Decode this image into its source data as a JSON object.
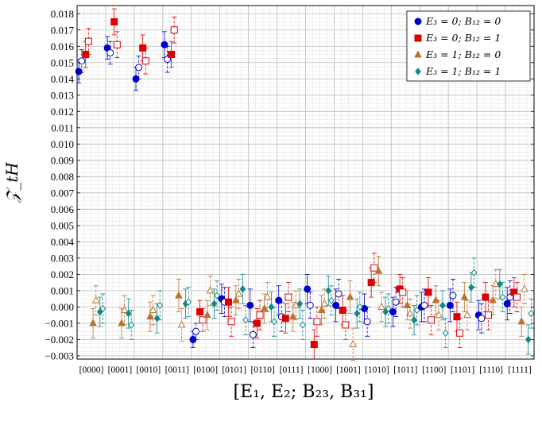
{
  "chart_data": {
    "type": "scatter",
    "title": "",
    "xlabel": "[E₁, E₂; B₂₃, B₃₁]",
    "ylabel": "𝒵_tH",
    "ylim": [
      -0.0032,
      0.0185
    ],
    "grid": true,
    "legend_position": "top-right",
    "categories": [
      "[0000]",
      "[0001]",
      "[0010]",
      "[0011]",
      "[0100]",
      "[0101]",
      "[0110]",
      "[0111]",
      "[1000]",
      "[1001]",
      "[1010]",
      "[1011]",
      "[1100]",
      "[1101]",
      "[1110]",
      "[1111]"
    ],
    "yticks": [
      "−0.003",
      "−0.002",
      "−0.001",
      "0.000",
      "0.001",
      "0.002",
      "0.003",
      "0.004",
      "0.005",
      "0.006",
      "0.007",
      "0.008",
      "0.009",
      "0.010",
      "0.011",
      "0.012",
      "0.013",
      "0.014",
      "0.015",
      "0.016",
      "0.017",
      "0.018"
    ],
    "ytick_values": [
      -0.003,
      -0.002,
      -0.001,
      0,
      0.001,
      0.002,
      0.003,
      0.004,
      0.005,
      0.006,
      0.007,
      0.008,
      0.009,
      0.01,
      0.011,
      0.012,
      0.013,
      0.014,
      0.015,
      0.016,
      0.017,
      0.018
    ],
    "series": [
      {
        "name": "E₃ = 0; B₁₂ = 0",
        "color": "#0000cc",
        "marker": "circle",
        "filled": [
          0.01445,
          0.0159,
          0.014,
          0.0161,
          -0.002,
          0.0005,
          0.0001,
          0.0004,
          0.0011,
          0.0001,
          -0.0001,
          -0.0003,
          0.0,
          0.0001,
          -0.0005,
          0.0002
        ],
        "filled_err": [
          0.0007,
          0.0007,
          0.0007,
          0.0008,
          0.0005,
          0.0009,
          0.001,
          0.0009,
          0.0009,
          0.001,
          0.0009,
          0.0009,
          0.0009,
          0.001,
          0.0009,
          0.001
        ],
        "open": [
          0.0151,
          0.0156,
          0.0147,
          0.0152,
          -0.0015,
          0.0003,
          -0.0017,
          -0.0006,
          0.0001,
          0.0008,
          -0.0009,
          0.0003,
          0.0001,
          0.0007,
          -0.0007,
          0.0006
        ],
        "open_err": [
          0.0007,
          0.0007,
          0.0007,
          0.0008,
          0.0005,
          0.0009,
          0.0008,
          0.0009,
          0.0008,
          0.0009,
          0.0009,
          0.0009,
          0.001,
          0.001,
          0.0009,
          0.001
        ]
      },
      {
        "name": "E₃ = 0; B₁₂ = 1",
        "color": "#dd0000",
        "marker": "square",
        "filled": [
          0.0155,
          0.0175,
          0.0159,
          0.0155,
          -0.0003,
          0.0003,
          -0.001,
          -0.0007,
          -0.0023,
          -0.0002,
          0.0015,
          0.0011,
          0.0009,
          -0.0006,
          0.0006,
          0.0009
        ],
        "filled_err": [
          0.0008,
          0.0008,
          0.0008,
          0.0008,
          0.0007,
          0.0009,
          0.0009,
          0.0009,
          0.0009,
          0.0009,
          0.0009,
          0.0009,
          0.0009,
          0.0009,
          0.0009,
          0.0009
        ],
        "open": [
          0.0163,
          0.0161,
          0.0151,
          0.017,
          -0.0008,
          -0.0009,
          -0.0005,
          0.0006,
          -0.0009,
          -0.0011,
          0.0024,
          0.0009,
          -0.0008,
          -0.0016,
          -0.0005,
          0.0006
        ],
        "open_err": [
          0.0008,
          0.0008,
          0.0008,
          0.0008,
          0.0007,
          0.0009,
          0.0009,
          0.0009,
          0.0009,
          0.0009,
          0.0009,
          0.0009,
          0.0009,
          0.0009,
          0.0009,
          0.0009
        ]
      },
      {
        "name": "E₃ = 1; B₁₂ = 0",
        "color": "#b87333",
        "marker": "triangle",
        "filled": [
          -0.001,
          -0.001,
          -0.0006,
          0.0007,
          -0.0005,
          0.0004,
          -0.0001,
          -0.0006,
          -0.0002,
          0.0006,
          0.0022,
          0.0001,
          0.0004,
          0.0006,
          0.0004,
          -0.0009
        ],
        "filled_err": [
          0.0009,
          0.0009,
          0.0009,
          0.001,
          0.0009,
          0.0009,
          0.0009,
          0.0009,
          0.0009,
          0.001,
          0.0009,
          0.0009,
          0.0009,
          0.0009,
          0.0009,
          0.0009
        ],
        "open": [
          0.0004,
          -0.0002,
          -0.0002,
          -0.0011,
          0.001,
          0.0008,
          0.0006,
          0.0001,
          0.0002,
          -0.0023,
          0.0,
          -0.0004,
          -0.0005,
          -0.0005,
          0.0014,
          0.0011
        ],
        "open_err": [
          0.0009,
          0.0009,
          0.0009,
          0.001,
          0.0009,
          0.0009,
          0.0009,
          0.0009,
          0.0009,
          0.001,
          0.0009,
          0.0009,
          0.0009,
          0.0009,
          0.0009,
          0.0009
        ]
      },
      {
        "name": "E₃ = 1; B₁₂ = 1",
        "color": "#118888",
        "marker": "diamond",
        "filled": [
          -0.0003,
          -0.0004,
          -0.0007,
          0.0002,
          0.0002,
          0.0011,
          0.0,
          0.0002,
          0.001,
          -0.0004,
          -0.0003,
          -0.0008,
          0.0001,
          0.0012,
          0.0014,
          -0.002
        ],
        "filled_err": [
          0.0009,
          0.0009,
          0.0009,
          0.0009,
          0.0009,
          0.0009,
          0.0009,
          0.0009,
          0.0009,
          0.0009,
          0.0009,
          0.0009,
          0.0009,
          0.0009,
          0.0009,
          0.0009
        ],
        "open": [
          -0.0001,
          -0.0011,
          0.0001,
          0.0003,
          0.0007,
          -0.0008,
          -0.0009,
          -0.0011,
          0.0004,
          0.0,
          -0.0001,
          -0.0002,
          -0.0016,
          0.0021,
          0.0006,
          -0.0004
        ],
        "open_err": [
          0.0009,
          0.0009,
          0.0009,
          0.0009,
          0.0009,
          0.0009,
          0.0009,
          0.0009,
          0.0009,
          0.0009,
          0.0009,
          0.0009,
          0.0009,
          0.0009,
          0.0009,
          0.0009
        ]
      }
    ]
  }
}
